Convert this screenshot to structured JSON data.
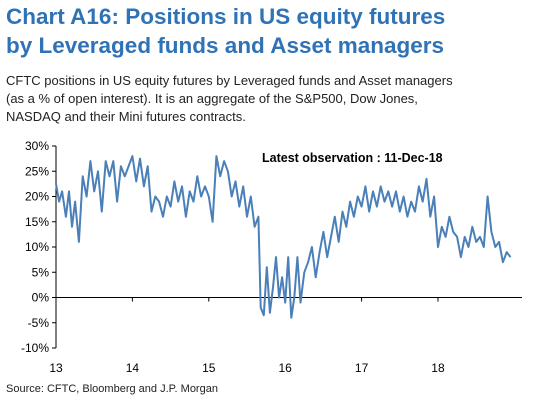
{
  "title_line1": "Chart A16: Positions in US equity futures",
  "title_line2": "by Leveraged funds and Asset managers",
  "subtitle_line1": "CFTC positions in US equity futures by Leveraged funds and Asset managers",
  "subtitle_line2": "(as a % of open interest). It is an aggregate of the S&P500, Dow Jones,",
  "subtitle_line3": "NASDAQ and their Mini futures contracts.",
  "source": "Source:  CFTC, Bloomberg and J.P. Morgan",
  "colors": {
    "title": "#2f73b6",
    "line": "#4a7fb8"
  },
  "chart_data": {
    "type": "line",
    "title": "",
    "xlabel": "",
    "ylabel": "",
    "ylim": [
      -10,
      30
    ],
    "xlim": [
      2013.0,
      2019.1
    ],
    "y_ticks": [
      -10,
      -5,
      0,
      5,
      10,
      15,
      20,
      25,
      30
    ],
    "y_tick_labels": [
      "-10%",
      "-5%",
      "0%",
      "5%",
      "10%",
      "15%",
      "20%",
      "25%",
      "30%"
    ],
    "x_ticks": [
      2013,
      2014,
      2015,
      2016,
      2017,
      2018
    ],
    "x_tick_labels": [
      "13",
      "14",
      "15",
      "16",
      "17",
      "18"
    ],
    "grid": false,
    "annotation": "Latest observation : 11-Dec-18",
    "series": [
      {
        "name": "",
        "x": [
          2013.0,
          2013.04,
          2013.08,
          2013.13,
          2013.17,
          2013.21,
          2013.25,
          2013.3,
          2013.35,
          2013.4,
          2013.45,
          2013.5,
          2013.55,
          2013.6,
          2013.65,
          2013.7,
          2013.75,
          2013.8,
          2013.85,
          2013.9,
          2013.95,
          2014.0,
          2014.05,
          2014.1,
          2014.15,
          2014.2,
          2014.25,
          2014.3,
          2014.35,
          2014.4,
          2014.45,
          2014.5,
          2014.55,
          2014.6,
          2014.65,
          2014.7,
          2014.75,
          2014.8,
          2014.85,
          2014.9,
          2014.95,
          2015.0,
          2015.05,
          2015.1,
          2015.15,
          2015.2,
          2015.25,
          2015.3,
          2015.35,
          2015.4,
          2015.45,
          2015.5,
          2015.55,
          2015.6,
          2015.65,
          2015.68,
          2015.72,
          2015.76,
          2015.8,
          2015.84,
          2015.88,
          2015.92,
          2015.96,
          2016.0,
          2016.04,
          2016.08,
          2016.12,
          2016.16,
          2016.2,
          2016.25,
          2016.3,
          2016.35,
          2016.4,
          2016.45,
          2016.5,
          2016.55,
          2016.6,
          2016.65,
          2016.7,
          2016.75,
          2016.8,
          2016.85,
          2016.9,
          2016.95,
          2017.0,
          2017.05,
          2017.1,
          2017.15,
          2017.2,
          2017.25,
          2017.3,
          2017.35,
          2017.4,
          2017.45,
          2017.5,
          2017.55,
          2017.6,
          2017.65,
          2017.7,
          2017.75,
          2017.8,
          2017.85,
          2017.9,
          2017.95,
          2018.0,
          2018.05,
          2018.1,
          2018.15,
          2018.2,
          2018.25,
          2018.3,
          2018.35,
          2018.4,
          2018.45,
          2018.5,
          2018.55,
          2018.6,
          2018.65,
          2018.7,
          2018.75,
          2018.8,
          2018.85,
          2018.9,
          2018.95
        ],
        "values": [
          22.5,
          19,
          21,
          16,
          21,
          14,
          19,
          11,
          24,
          20,
          27,
          21,
          25,
          17,
          27,
          24,
          27,
          19,
          26,
          24,
          26,
          28,
          23,
          27.5,
          22,
          26,
          17,
          20,
          19,
          16,
          20,
          18,
          23,
          19,
          22,
          16,
          21,
          19,
          24,
          20,
          22,
          20,
          15,
          28,
          24,
          27,
          25,
          20,
          23,
          18,
          22,
          16,
          20,
          14,
          16,
          -2,
          -3.5,
          6,
          -3,
          2,
          8,
          0,
          4,
          -1,
          8,
          -4,
          0,
          8,
          -1,
          5,
          7,
          10,
          4,
          9,
          13,
          8,
          12,
          16,
          11,
          17,
          14,
          19,
          16,
          20,
          18,
          22,
          17,
          21,
          18,
          22,
          19,
          21,
          18,
          21,
          17,
          20,
          16,
          19,
          17,
          22,
          19,
          23.5,
          16,
          20,
          10,
          14,
          12,
          16,
          13,
          12,
          8,
          12,
          10,
          14,
          11,
          12,
          10,
          20,
          13,
          10,
          11,
          7,
          9,
          8
        ]
      }
    ]
  }
}
